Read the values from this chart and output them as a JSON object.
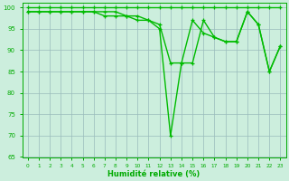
{
  "x": [
    0,
    1,
    2,
    3,
    4,
    5,
    6,
    7,
    8,
    9,
    10,
    11,
    12,
    13,
    14,
    15,
    16,
    17,
    18,
    19,
    20,
    21,
    22,
    23
  ],
  "series3": [
    100,
    100,
    100,
    100,
    100,
    100,
    100,
    100,
    100,
    100,
    100,
    100,
    100,
    100,
    100,
    100,
    100,
    100,
    100,
    100,
    100,
    100,
    100,
    100
  ],
  "series1": [
    99,
    99,
    99,
    99,
    99,
    99,
    99,
    98,
    98,
    98,
    97,
    97,
    96,
    87,
    87,
    97,
    94,
    93,
    92,
    92,
    99,
    96,
    85,
    91
  ],
  "series2": [
    99,
    99,
    99,
    99,
    99,
    99,
    99,
    99,
    99,
    98,
    98,
    97,
    95,
    70,
    87,
    87,
    97,
    93,
    92,
    92,
    99,
    96,
    85,
    91
  ],
  "line_color": "#00bb00",
  "bg_color": "#cceedd",
  "grid_color": "#99bbbb",
  "xlabel": "Humidité relative (%)",
  "xlabel_color": "#00aa00",
  "tick_color": "#00aa00",
  "ylim": [
    65,
    101
  ],
  "xlim": [
    -0.5,
    23.5
  ],
  "yticks": [
    65,
    70,
    75,
    80,
    85,
    90,
    95,
    100
  ],
  "xticks": [
    0,
    1,
    2,
    3,
    4,
    5,
    6,
    7,
    8,
    9,
    10,
    11,
    12,
    13,
    14,
    15,
    16,
    17,
    18,
    19,
    20,
    21,
    22,
    23
  ]
}
